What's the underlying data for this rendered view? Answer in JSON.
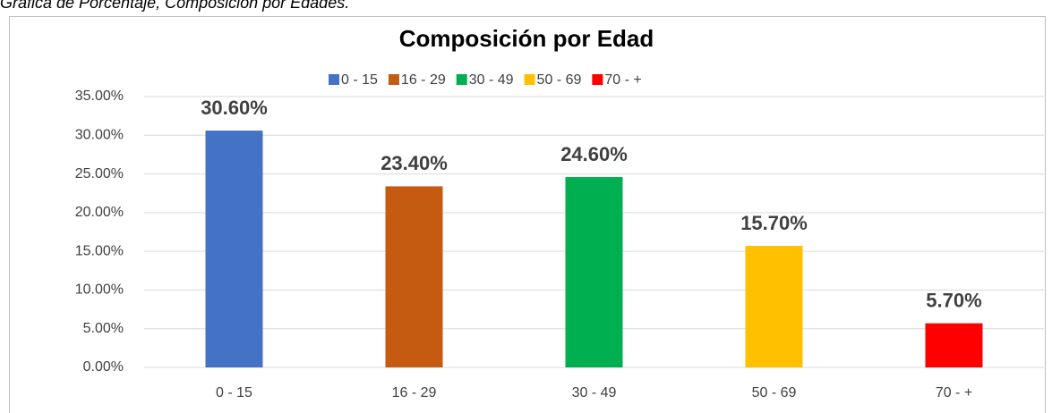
{
  "caption": "Gráfica de Porcentaje, Composición por Edades.",
  "chart_data": {
    "type": "bar",
    "title": "Composición por Edad",
    "categories": [
      "0 - 15",
      "16 - 29",
      "30 - 49",
      "50 - 69",
      "70 - +"
    ],
    "values": [
      30.6,
      23.4,
      24.6,
      15.7,
      5.7
    ],
    "value_labels": [
      "30.60%",
      "23.40%",
      "24.60%",
      "15.70%",
      "5.70%"
    ],
    "colors": [
      "#4472c4",
      "#c55a11",
      "#00b050",
      "#ffc000",
      "#ff0000"
    ],
    "ylim": [
      0,
      35
    ],
    "yticks": [
      {
        "value": 0,
        "label": "0.00%"
      },
      {
        "value": 5,
        "label": "5.00%"
      },
      {
        "value": 10,
        "label": "10.00%"
      },
      {
        "value": 15,
        "label": "15.00%"
      },
      {
        "value": 20,
        "label": "20.00%"
      },
      {
        "value": 25,
        "label": "25.00%"
      },
      {
        "value": 30,
        "label": "30.00%"
      },
      {
        "value": 35,
        "label": "35.00%"
      }
    ],
    "grid": true,
    "legend": "top"
  }
}
